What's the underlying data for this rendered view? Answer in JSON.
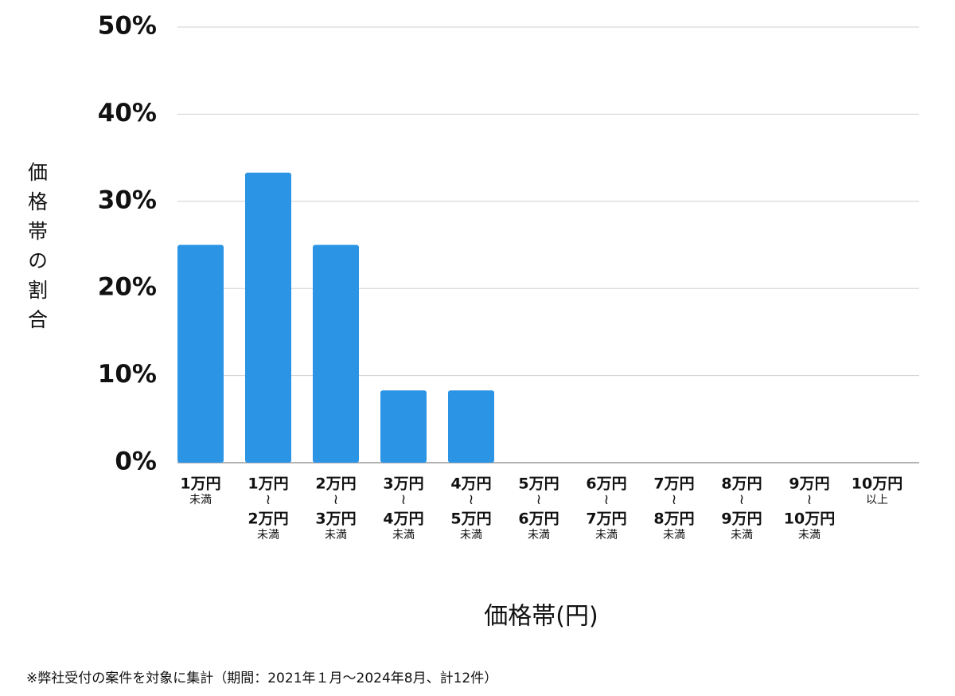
{
  "chart_data": {
    "type": "bar",
    "y_axis_label": "価格帯の割合",
    "x_axis_label": "価格帯(円)",
    "footnote": "※弊社受付の案件を対象に集計（期間：2021年１月〜2024年8月、計12件）",
    "categories": [
      [
        "1万円",
        "未満"
      ],
      [
        "1万円",
        "≀",
        "2万円",
        "未満"
      ],
      [
        "2万円",
        "≀",
        "3万円",
        "未満"
      ],
      [
        "3万円",
        "≀",
        "4万円",
        "未満"
      ],
      [
        "4万円",
        "≀",
        "5万円",
        "未満"
      ],
      [
        "5万円",
        "≀",
        "6万円",
        "未満"
      ],
      [
        "6万円",
        "≀",
        "7万円",
        "未満"
      ],
      [
        "7万円",
        "≀",
        "8万円",
        "未満"
      ],
      [
        "8万円",
        "≀",
        "9万円",
        "未満"
      ],
      [
        "9万円",
        "≀",
        "10万円",
        "未満"
      ],
      [
        "10万円",
        "以上"
      ]
    ],
    "values": [
      25,
      33.3,
      25,
      8.3,
      8.3,
      0,
      0,
      0,
      0,
      0,
      0
    ],
    "color": "#2b94e5",
    "ylim": [
      0,
      50
    ],
    "yticks": [
      {
        "value": 0,
        "label": "0%"
      },
      {
        "value": 10,
        "label": "10%"
      },
      {
        "value": 20,
        "label": "20%"
      },
      {
        "value": 30,
        "label": "30%"
      },
      {
        "value": 40,
        "label": "40%"
      },
      {
        "value": 50,
        "label": "50%"
      }
    ],
    "grid": true
  }
}
